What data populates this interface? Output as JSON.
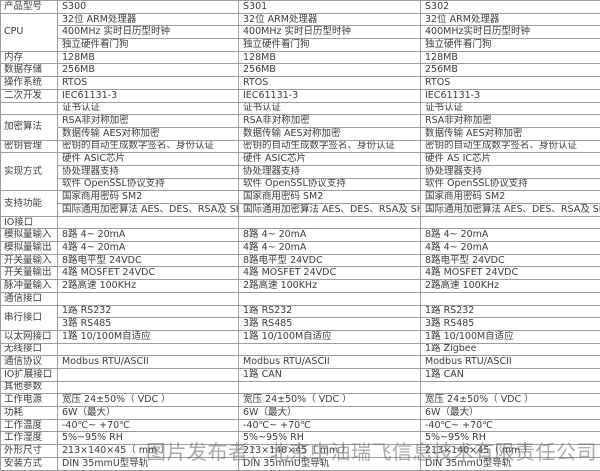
{
  "colors": {
    "table_border": "#9c9c9c",
    "table_text": "#3b3b3b",
    "watermark_text": "#646464",
    "background": "#ffffff"
  },
  "watermark": {
    "text": "图片发布者：北京中油瑞飞信息技术有限责任公司"
  },
  "table": {
    "products": [
      "S300",
      "S301",
      "S302"
    ],
    "rows": [
      {
        "label": "产品型号",
        "cells": [
          "S300",
          "S301",
          "S302"
        ]
      },
      {
        "label": "CPU",
        "rowspan": 3,
        "cells": [
          "32位 ARM处理器",
          "32位 ARM处理器",
          "32位 ARM处理器"
        ]
      },
      {
        "label": null,
        "cells": [
          "400MHz 实时日历型时钟",
          "400MHz 实时日历型时钟",
          "400MHz实时日历型时钟"
        ]
      },
      {
        "label": null,
        "cells": [
          "独立硬件看门狗",
          "独立硬件看门狗",
          "独立硬件看门狗"
        ]
      },
      {
        "label": "内存",
        "cells": [
          "128MB",
          "128MB",
          "128MB"
        ]
      },
      {
        "label": "数据存储",
        "cells": [
          "256MB",
          "256MB",
          "256MB"
        ]
      },
      {
        "label": "操作系统",
        "cells": [
          "RTOS",
          "RTOS",
          "RTOS"
        ]
      },
      {
        "label": "二次开发",
        "cells": [
          "IEC61131-3",
          "IEC61131-3",
          "IEC61131-3"
        ]
      },
      {
        "label": "",
        "cells": [
          "证书认证",
          "证书认证",
          "证书认证"
        ]
      },
      {
        "label": "加密算法",
        "rowspan": 2,
        "cells": [
          "RSA非对称加密",
          "RSA非对称加密",
          "RSA非对称加密"
        ]
      },
      {
        "label": null,
        "cells": [
          "数据传输 AES对称加密",
          "数据传输 AES对称加密",
          "数据传输 AES对称加密"
        ]
      },
      {
        "label": "密钥管理",
        "cells": [
          "密钥的自动生成数字签名、身份认证",
          "密钥的自动生成数字签名、身份认证",
          "密钥的自动生成数字签名、身份认证"
        ]
      },
      {
        "label": "实现方式",
        "rowspan": 3,
        "cells": [
          "硬件 ASIC芯片",
          "硬件 ASIC芯片",
          "硬件 AS IC芯片"
        ]
      },
      {
        "label": null,
        "cells": [
          "协处理器支持",
          "协处理器支持",
          "协处理器支持"
        ]
      },
      {
        "label": null,
        "cells": [
          "软件 OpenSSL协议支持",
          "软件 OpenSSL协议支持",
          "软件 OpenSSL协议支持"
        ]
      },
      {
        "label": "支持功能",
        "rowspan": 2,
        "cells": [
          "国家商用密码 SM2",
          "国家商用密码 SM2",
          "国家商用密码 SM2"
        ]
      },
      {
        "label": null,
        "cells": [
          "国际通用加密算法 AES、DES、RSA及 SHA",
          "国际通用加密算法 AES、DES、RSA及 SHA",
          "国际通用加密算法 AES、DES、RSA及 SHA"
        ]
      },
      {
        "label": "IO接口",
        "cells": [
          "",
          "",
          ""
        ]
      },
      {
        "label": "模拟量输入",
        "cells": [
          "8路 4~ 20mA",
          "8路 4~ 20mA",
          "8路 4~ 20mA"
        ]
      },
      {
        "label": "模拟量输出",
        "cells": [
          "4路 4~ 20mA",
          "4路 4~ 20mA",
          "4路 4~ 20mA"
        ]
      },
      {
        "label": "开关量输入",
        "cells": [
          "8路电平型 24VDC",
          "8路电平型 24VDC",
          "8路电平型 24VDC"
        ]
      },
      {
        "label": "开关量输出",
        "cells": [
          "4路 MOSFET 24VDC",
          "4路 MOSFET 24VDC",
          "4路 MOSFET 24VDC"
        ]
      },
      {
        "label": "脉冲量输入",
        "cells": [
          "2路高速 100KHz",
          "2路高速 100KHz",
          "2路高速 100KHz"
        ]
      },
      {
        "label": "通信接口",
        "cells": [
          "",
          "",
          ""
        ]
      },
      {
        "label": "串行接口",
        "rowspan": 2,
        "cells": [
          "1路 RS232",
          "1路 RS232",
          "1路 RS232"
        ]
      },
      {
        "label": null,
        "cells": [
          "3路 RS485",
          "3路 RS485",
          "3路 RS485"
        ]
      },
      {
        "label": "以太网接口",
        "cells": [
          "1路 10/100M自适应",
          "1路 10/100M自适应",
          "1路 10/100M自适应"
        ]
      },
      {
        "label": "无线接口",
        "cells": [
          "",
          "",
          "1路 Zigbee"
        ]
      },
      {
        "label": "通信协议",
        "cells": [
          "Modbus RTU/ASCII",
          "Modbus RTU/ASCII",
          "Modbus RTU/ASCII"
        ]
      },
      {
        "label": "IO扩展接口",
        "cells": [
          "",
          "1路 CAN",
          "1路 CAN"
        ]
      },
      {
        "label": "其他参数",
        "cells": [
          "",
          "",
          ""
        ]
      },
      {
        "label": "工作电源",
        "cells": [
          "宽压 24±50%（ VDC ）",
          "宽压 24±50%（ VDC ）",
          "宽压 24±50%（ VDC ）"
        ]
      },
      {
        "label": "功耗",
        "cells": [
          "6W（最大）",
          "6W（最大）",
          "6W（最大）"
        ]
      },
      {
        "label": "工作温度",
        "cells": [
          "-40℃~ +70℃",
          "-40℃~ +70℃",
          "-40℃~ +70℃"
        ]
      },
      {
        "label": "工作湿度",
        "cells": [
          "5%~95% RH",
          "5%~95% RH",
          "5%~95% RH"
        ]
      },
      {
        "label": "外形尺寸",
        "cells": [
          "213×140×45（ mm ）",
          "213×140×45（ mm ）",
          "213×140×45（ mm ）"
        ]
      },
      {
        "label": "安装方式",
        "cells": [
          "DIN 35mmU型导轨",
          "DIN 35mmU型导轨",
          "DIN 35mmU型导轨"
        ]
      }
    ]
  }
}
